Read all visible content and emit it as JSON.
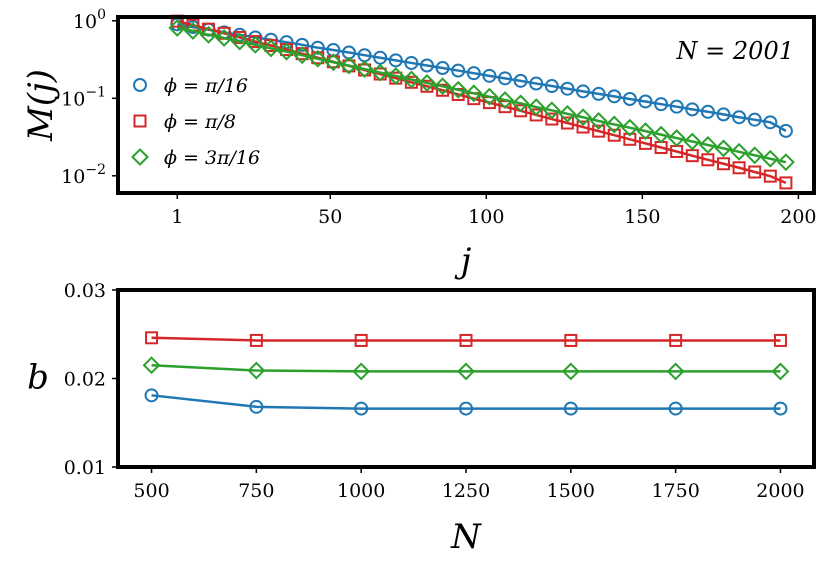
{
  "chart_data": [
    {
      "type": "line",
      "xlabel": "j",
      "ylabel": "M(j)",
      "xlim": [
        -18,
        205
      ],
      "ylim": [
        0.006,
        1.12
      ],
      "yscale": "log",
      "xticks": [
        1,
        50,
        100,
        150,
        200
      ],
      "yticks": [
        {
          "value": 1,
          "base": "10",
          "exp": "0"
        },
        {
          "value": 0.1,
          "base": "10",
          "exp": "−1"
        },
        {
          "value": 0.01,
          "base": "10",
          "exp": "−2"
        }
      ],
      "annotation": "N = 2001",
      "legend_position": "left",
      "grid": false,
      "x": [
        1,
        6,
        11,
        16,
        21,
        26,
        31,
        36,
        41,
        46,
        51,
        56,
        61,
        66,
        71,
        76,
        81,
        86,
        91,
        96,
        101,
        106,
        111,
        116,
        121,
        126,
        131,
        136,
        141,
        146,
        151,
        156,
        161,
        166,
        171,
        176,
        181,
        186,
        191,
        196
      ],
      "series": [
        {
          "name": "ϕ = π/16",
          "marker": "circle",
          "color": "#1f77b4",
          "values": [
            0.9,
            0.83,
            0.77,
            0.71,
            0.66,
            0.61,
            0.57,
            0.53,
            0.49,
            0.45,
            0.42,
            0.39,
            0.36,
            0.334,
            0.309,
            0.286,
            0.265,
            0.246,
            0.228,
            0.211,
            0.195,
            0.181,
            0.168,
            0.155,
            0.144,
            0.133,
            0.123,
            0.114,
            0.106,
            0.098,
            0.091,
            0.084,
            0.078,
            0.072,
            0.067,
            0.062,
            0.057,
            0.053,
            0.049,
            0.038
          ]
        },
        {
          "name": "ϕ = π/8",
          "marker": "square",
          "color": "#d62728",
          "values": [
            0.99,
            0.88,
            0.78,
            0.69,
            0.61,
            0.54,
            0.48,
            0.426,
            0.377,
            0.334,
            0.296,
            0.262,
            0.232,
            0.206,
            0.182,
            0.161,
            0.143,
            0.127,
            0.112,
            0.099,
            0.088,
            0.078,
            0.069,
            0.061,
            0.054,
            0.048,
            0.0426,
            0.0377,
            0.0334,
            0.0296,
            0.0262,
            0.0232,
            0.0206,
            0.0182,
            0.0161,
            0.0143,
            0.0127,
            0.0112,
            0.0099,
            0.0081
          ]
        },
        {
          "name": "ϕ = 3π/16",
          "marker": "diamond",
          "color": "#2ca02c",
          "values": [
            0.81,
            0.74,
            0.66,
            0.6,
            0.54,
            0.49,
            0.44,
            0.4,
            0.36,
            0.324,
            0.292,
            0.264,
            0.238,
            0.215,
            0.194,
            0.175,
            0.158,
            0.143,
            0.129,
            0.116,
            0.105,
            0.095,
            0.086,
            0.077,
            0.07,
            0.063,
            0.057,
            0.051,
            0.046,
            0.0418,
            0.0377,
            0.034,
            0.0307,
            0.0277,
            0.025,
            0.0226,
            0.0204,
            0.0184,
            0.0166,
            0.015
          ]
        }
      ]
    },
    {
      "type": "line",
      "xlabel": "N",
      "ylabel": "b",
      "xlim": [
        420,
        2080
      ],
      "ylim": [
        0.01,
        0.03
      ],
      "yscale": "linear",
      "xticks": [
        500,
        750,
        1000,
        1250,
        1500,
        1750,
        2000
      ],
      "yticks": [
        0.01,
        0.02,
        0.03
      ],
      "ytick_labels": [
        "0.01",
        "0.02",
        "0.03"
      ],
      "grid": false,
      "x": [
        500,
        750,
        1000,
        1250,
        1500,
        1750,
        2000
      ],
      "series": [
        {
          "marker": "square",
          "color": "#d62728",
          "values": [
            0.0246,
            0.0243,
            0.0243,
            0.0243,
            0.0243,
            0.0243,
            0.0243
          ]
        },
        {
          "marker": "diamond",
          "color": "#2ca02c",
          "values": [
            0.0215,
            0.0209,
            0.0208,
            0.0208,
            0.0208,
            0.0208,
            0.0208
          ]
        },
        {
          "marker": "circle",
          "color": "#1f77b4",
          "values": [
            0.0181,
            0.0168,
            0.0166,
            0.0166,
            0.0166,
            0.0166,
            0.0166
          ]
        }
      ]
    }
  ]
}
